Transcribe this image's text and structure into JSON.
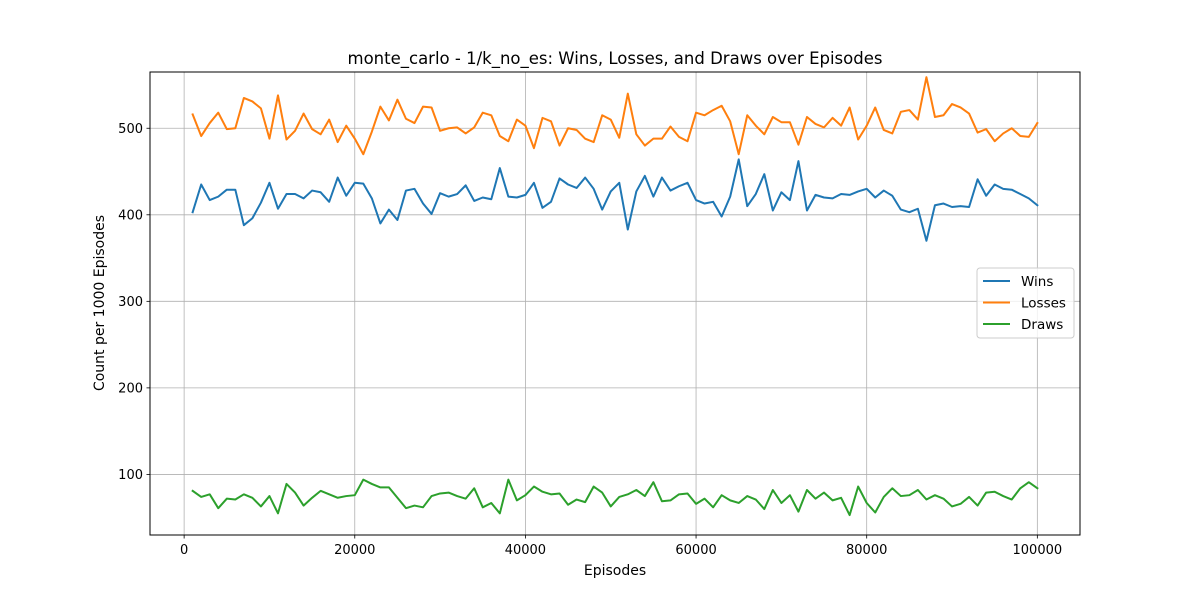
{
  "chart_data": {
    "type": "line",
    "title": "monte_carlo - 1/k_no_es: Wins, Losses, and Draws over Episodes",
    "xlabel": "Episodes",
    "ylabel": "Count per 1000 Episodes",
    "xlim": [
      -4000,
      105000
    ],
    "ylim": [
      30,
      565
    ],
    "xticks": [
      0,
      20000,
      40000,
      60000,
      80000,
      100000
    ],
    "yticks": [
      100,
      200,
      300,
      400,
      500
    ],
    "grid": true,
    "legend_position": "right",
    "x": [
      1000,
      2000,
      3000,
      4000,
      5000,
      6000,
      7000,
      8000,
      9000,
      10000,
      11000,
      12000,
      13000,
      14000,
      15000,
      16000,
      17000,
      18000,
      19000,
      20000,
      21000,
      22000,
      23000,
      24000,
      25000,
      26000,
      27000,
      28000,
      29000,
      30000,
      31000,
      32000,
      33000,
      34000,
      35000,
      36000,
      37000,
      38000,
      39000,
      40000,
      41000,
      42000,
      43000,
      44000,
      45000,
      46000,
      47000,
      48000,
      49000,
      50000,
      51000,
      52000,
      53000,
      54000,
      55000,
      56000,
      57000,
      58000,
      59000,
      60000,
      61000,
      62000,
      63000,
      64000,
      65000,
      66000,
      67000,
      68000,
      69000,
      70000,
      71000,
      72000,
      73000,
      74000,
      75000,
      76000,
      77000,
      78000,
      79000,
      80000,
      81000,
      82000,
      83000,
      84000,
      85000,
      86000,
      87000,
      88000,
      89000,
      90000,
      91000,
      92000,
      93000,
      94000,
      95000,
      96000,
      97000,
      98000,
      99000,
      100000
    ],
    "series": [
      {
        "name": "Wins",
        "color": "#1f77b4",
        "values": [
          403,
          435,
          417,
          421,
          429,
          429,
          388,
          396,
          414,
          437,
          407,
          424,
          424,
          419,
          428,
          426,
          415,
          443,
          422,
          437,
          436,
          419,
          390,
          406,
          394,
          428,
          430,
          413,
          401,
          425,
          421,
          424,
          434,
          416,
          420,
          418,
          454,
          421,
          420,
          423,
          437,
          408,
          415,
          442,
          435,
          431,
          443,
          430,
          406,
          427,
          437,
          383,
          427,
          445,
          421,
          443,
          428,
          433,
          437,
          417,
          413,
          415,
          398,
          421,
          464,
          410,
          424,
          447,
          405,
          426,
          417,
          462,
          405,
          423,
          420,
          419,
          424,
          423,
          427,
          430,
          420,
          428,
          422,
          406,
          403,
          407,
          370,
          411,
          413,
          409,
          410,
          409,
          441,
          422,
          435,
          430,
          429,
          424,
          419,
          411
        ]
      },
      {
        "name": "Losses",
        "color": "#ff7f0e",
        "values": [
          516,
          491,
          506,
          518,
          499,
          500,
          535,
          531,
          523,
          488,
          538,
          487,
          497,
          517,
          499,
          493,
          510,
          484,
          503,
          488,
          470,
          496,
          525,
          509,
          533,
          511,
          506,
          525,
          524,
          497,
          500,
          501,
          494,
          501,
          518,
          515,
          491,
          485,
          510,
          503,
          477,
          512,
          508,
          480,
          500,
          498,
          488,
          484,
          515,
          510,
          489,
          540,
          493,
          480,
          488,
          488,
          502,
          490,
          485,
          518,
          515,
          521,
          526,
          508,
          470,
          515,
          503,
          493,
          513,
          507,
          507,
          481,
          513,
          505,
          501,
          512,
          503,
          524,
          487,
          503,
          524,
          498,
          494,
          519,
          521,
          510,
          559,
          513,
          515,
          528,
          524,
          517,
          495,
          499,
          485,
          494,
          500,
          491,
          490,
          506
        ]
      },
      {
        "name": "Draws",
        "color": "#2ca02c",
        "values": [
          81,
          74,
          77,
          61,
          72,
          71,
          77,
          73,
          63,
          75,
          55,
          89,
          79,
          64,
          73,
          81,
          77,
          73,
          75,
          76,
          94,
          89,
          85,
          85,
          73,
          61,
          64,
          62,
          75,
          78,
          79,
          75,
          72,
          84,
          62,
          67,
          55,
          94,
          70,
          76,
          86,
          80,
          77,
          78,
          65,
          71,
          68,
          86,
          79,
          63,
          74,
          77,
          82,
          75,
          91,
          69,
          70,
          77,
          78,
          66,
          72,
          62,
          76,
          70,
          67,
          75,
          71,
          60,
          82,
          67,
          76,
          57,
          82,
          72,
          79,
          70,
          73,
          53,
          86,
          67,
          56,
          74,
          84,
          75,
          76,
          82,
          71,
          76,
          72,
          63,
          66,
          74,
          64,
          79,
          80,
          75,
          71,
          84,
          91,
          84
        ]
      }
    ]
  }
}
